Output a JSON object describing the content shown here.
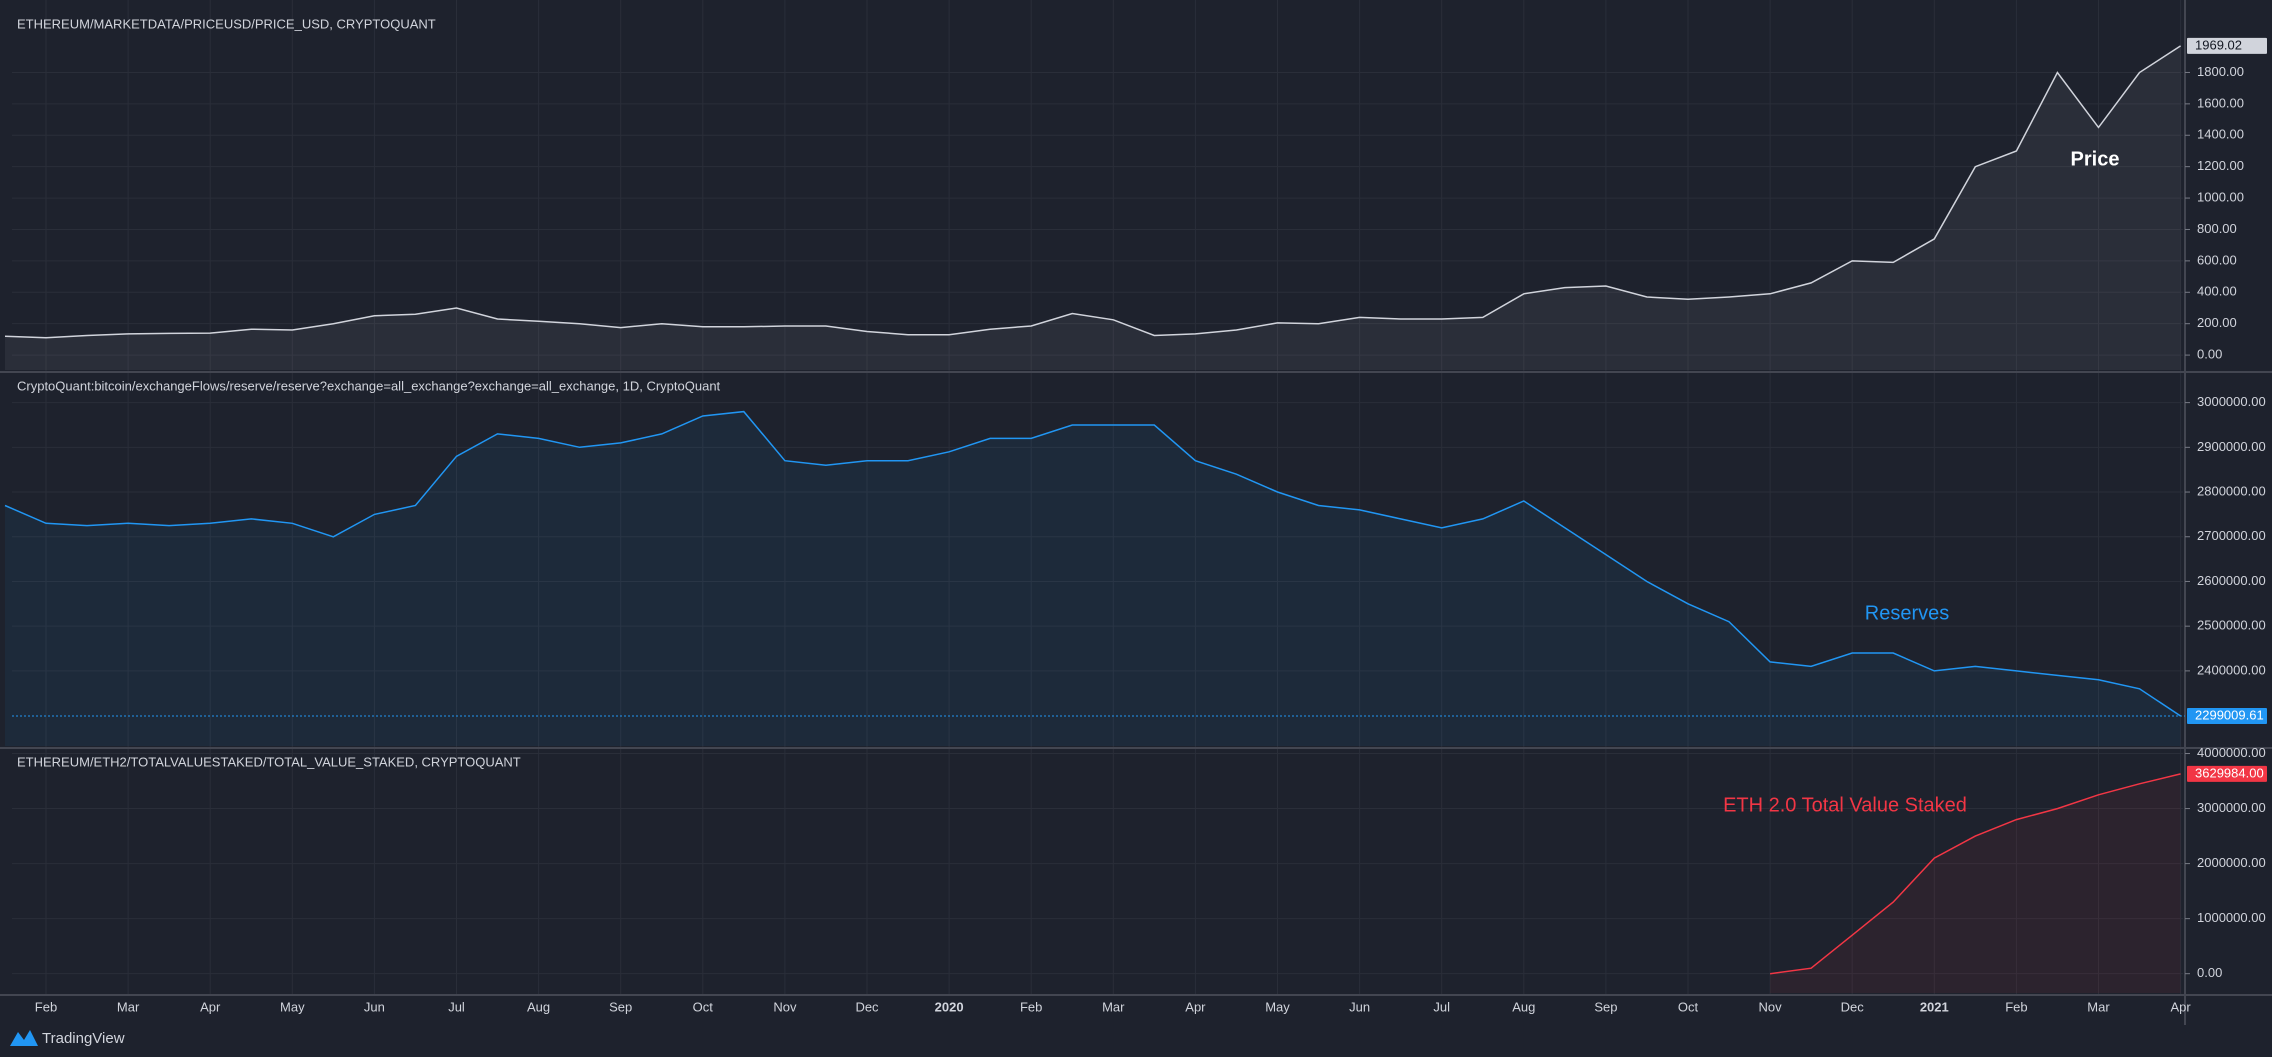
{
  "chart_data": [
    {
      "type": "line",
      "title": "ETHEREUM/MARKETDATA/PRICEUSD/PRICE_USD, CRYPTOQUANT",
      "annotation": "Price",
      "color": "#d1d4dc",
      "values": [
        120,
        110,
        125,
        135,
        138,
        140,
        165,
        160,
        200,
        250,
        260,
        300,
        230,
        215,
        200,
        175,
        200,
        180,
        180,
        185,
        185,
        150,
        130,
        130,
        165,
        185,
        265,
        225,
        125,
        135,
        160,
        205,
        200,
        240,
        230,
        230,
        240,
        390,
        430,
        440,
        370,
        355,
        370,
        390,
        460,
        600,
        590,
        740,
        1200,
        1300,
        1800,
        1450,
        1800,
        1969.02
      ],
      "ylim": [
        -95,
        2185
      ],
      "yticks": [
        {
          "value": 0,
          "label": "0.00"
        },
        {
          "value": 200,
          "label": "200.00"
        },
        {
          "value": 400,
          "label": "400.00"
        },
        {
          "value": 600,
          "label": "600.00"
        },
        {
          "value": 800,
          "label": "800.00"
        },
        {
          "value": 1000,
          "label": "1000.00"
        },
        {
          "value": 1200,
          "label": "1200.00"
        },
        {
          "value": 1400,
          "label": "1400.00"
        },
        {
          "value": 1600,
          "label": "1600.00"
        },
        {
          "value": 1800,
          "label": "1800.00"
        }
      ],
      "grid": true
    },
    {
      "type": "line",
      "title": "CryptoQuant:bitcoin/exchangeFlows/reserve/reserve?exchange=all_exchange?exchange=all_exchange, 1D, CryptoQuant",
      "annotation": "Reserves",
      "color": "#2196f3",
      "price_line": true,
      "values": [
        2770000,
        2730000,
        2725000,
        2730000,
        2725000,
        2730000,
        2740000,
        2730000,
        2700000,
        2750000,
        2770000,
        2880000,
        2930000,
        2920000,
        2900000,
        2910000,
        2930000,
        2970000,
        2980000,
        2870000,
        2860000,
        2870000,
        2870000,
        2890000,
        2920000,
        2920000,
        2950000,
        2950000,
        2950000,
        2870000,
        2840000,
        2800000,
        2770000,
        2760000,
        2740000,
        2720000,
        2740000,
        2780000,
        2720000,
        2660000,
        2600000,
        2550000,
        2510000,
        2420000,
        2410000,
        2440000,
        2440000,
        2400000,
        2410000,
        2400000,
        2390000,
        2380000,
        2360000,
        2299009.61
      ],
      "ylim": [
        2232000,
        3064000
      ],
      "yticks": [
        {
          "value": 2400000,
          "label": "2400000.00"
        },
        {
          "value": 2500000,
          "label": "2500000.00"
        },
        {
          "value": 2600000,
          "label": "2600000.00"
        },
        {
          "value": 2700000,
          "label": "2700000.00"
        },
        {
          "value": 2800000,
          "label": "2800000.00"
        },
        {
          "value": 2900000,
          "label": "2900000.00"
        },
        {
          "value": 3000000,
          "label": "3000000.00"
        }
      ],
      "grid": true
    },
    {
      "type": "line",
      "title": "ETHEREUM/ETH2/TOTALVALUESTAKED/TOTAL_VALUE_STAKED, CRYPTOQUANT",
      "annotation": "ETH 2.0 Total Value Staked",
      "color": "#f23645",
      "categories": [
        null,
        "Feb",
        null,
        "Mar",
        null,
        "Apr",
        null,
        "May",
        null,
        "Jun",
        null,
        "Jul",
        null,
        "Aug",
        null,
        "Sep",
        null,
        "Oct",
        null,
        "Nov",
        null,
        "Dec",
        null,
        "2020",
        null,
        "Feb",
        null,
        "Mar",
        null,
        "Apr",
        null,
        "May",
        null,
        "Jun",
        null,
        "Jul",
        null,
        "Aug",
        null,
        "Sep",
        null,
        "Oct",
        null,
        "Nov",
        null,
        "Dec",
        null,
        "2021",
        null,
        "Feb",
        null,
        "Mar",
        null,
        "Apr"
      ],
      "values": [
        null,
        null,
        null,
        null,
        null,
        null,
        null,
        null,
        null,
        null,
        null,
        null,
        null,
        null,
        null,
        null,
        null,
        null,
        null,
        null,
        null,
        null,
        null,
        null,
        null,
        null,
        null,
        null,
        null,
        null,
        null,
        null,
        null,
        null,
        null,
        null,
        null,
        null,
        null,
        null,
        null,
        null,
        null,
        0,
        100000,
        700000,
        1300000,
        2100000,
        2500000,
        2800000,
        3000000,
        3250000,
        3450000,
        3629984
      ],
      "value_labels": [
        null,
        null,
        null,
        null,
        null,
        null,
        null,
        null,
        null,
        null,
        null,
        null,
        null,
        null,
        null,
        null,
        null,
        null,
        null,
        null,
        null,
        null,
        null,
        null,
        null,
        null,
        null,
        null,
        null,
        null,
        null,
        null,
        null,
        null,
        null,
        null,
        null,
        null,
        null,
        null,
        null,
        null,
        null,
        null,
        null,
        null,
        null,
        null,
        null,
        null,
        null,
        null,
        null,
        "3629984.00"
      ],
      "ylim": [
        -351000,
        4064000
      ],
      "yticks": [
        {
          "value": 0,
          "label": "0.00"
        },
        {
          "value": 1000000,
          "label": "1000000.00"
        },
        {
          "value": 2000000,
          "label": "2000000.00"
        },
        {
          "value": 3000000,
          "label": "3000000.00"
        },
        {
          "value": 4000000,
          "label": "4000000.00"
        }
      ],
      "grid": true
    }
  ],
  "footer": {
    "brand": "TradingView"
  }
}
